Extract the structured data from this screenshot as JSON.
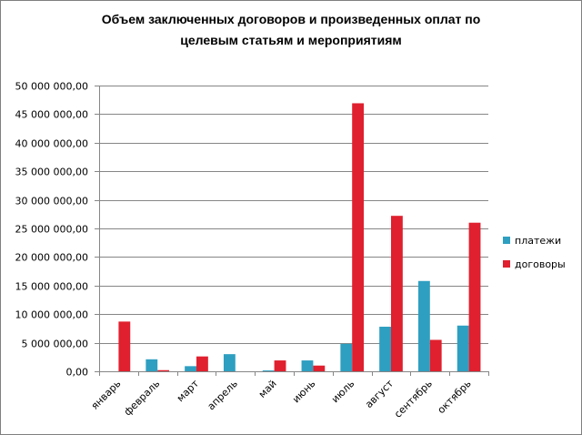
{
  "chart_data": {
    "type": "bar",
    "title_lines": [
      "Объем заключенных договоров и произведенных оплат по",
      "целевым статьям и мероприятиям"
    ],
    "categories": [
      "январь",
      "февраль",
      "март",
      "апрель",
      "май",
      "июнь",
      "июль",
      "август",
      "сентябрь",
      "октябрь"
    ],
    "series": [
      {
        "name": "платежи",
        "color": "#2e9fc1",
        "values": [
          0,
          2100000,
          900000,
          3000000,
          150000,
          1900000,
          4800000,
          7800000,
          15800000,
          8000000
        ]
      },
      {
        "name": "договоры",
        "color": "#e0202e",
        "values": [
          8700000,
          200000,
          2600000,
          0,
          1900000,
          1000000,
          46900000,
          27200000,
          5500000,
          26000000
        ]
      }
    ],
    "ylim": [
      0,
      50000000
    ],
    "yticks": [
      0,
      5000000,
      10000000,
      15000000,
      20000000,
      25000000,
      30000000,
      35000000,
      40000000,
      45000000,
      50000000
    ],
    "ytick_labels": [
      "0,00",
      "5 000 000,00",
      "10 000 000,00",
      "15 000 000,00",
      "20 000 000,00",
      "25 000 000,00",
      "30 000 000,00",
      "35 000 000,00",
      "40 000 000,00",
      "45 000 000,00",
      "50 000 000,00"
    ],
    "grid": true,
    "legend_position": "right"
  }
}
